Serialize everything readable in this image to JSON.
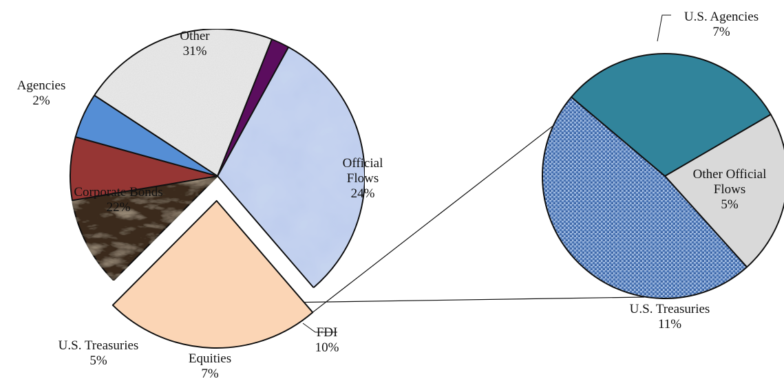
{
  "chart_data": {
    "type": "pie",
    "title": "",
    "series": [
      {
        "name": "",
        "slices": [
          {
            "label_lines": [
              "Other",
              "31%"
            ],
            "label": "Other",
            "value": 31,
            "color": "#c8d6f0",
            "texture": "paper"
          },
          {
            "label_lines": [
              "Official",
              "Flows",
              "24%"
            ],
            "label": "Official Flows",
            "value": 24,
            "color": "#fbd5b5",
            "exploded": true
          },
          {
            "label_lines": [
              "FDI",
              "10%"
            ],
            "label": "FDI",
            "value": 10,
            "color": "#3b2a1d",
            "texture": "marble"
          },
          {
            "label_lines": [
              "Equities",
              "7%"
            ],
            "label": "Equities",
            "value": 7,
            "color": "#963634"
          },
          {
            "label_lines": [
              "U.S. Treasuries",
              "5%"
            ],
            "label": "U.S. Treasuries",
            "value": 5,
            "color": "#558ed5"
          },
          {
            "label_lines": [
              "Corporate Bonds",
              "22%"
            ],
            "label": "Corporate Bonds",
            "value": 22,
            "color": "#ececec",
            "texture": "noise"
          },
          {
            "label_lines": [
              "Agencies",
              "2%"
            ],
            "label": "Agencies",
            "value": 2,
            "color": "#5b0d5e"
          }
        ]
      },
      {
        "name": "",
        "breakdown_of": "Official Flows",
        "slices": [
          {
            "label_lines": [
              "U.S. Agencies",
              "7%"
            ],
            "label": "U.S. Agencies",
            "value": 7,
            "color": "#31849b"
          },
          {
            "label_lines": [
              "Other Official",
              "Flows",
              "5%"
            ],
            "label": "Other Official Flows",
            "value": 5,
            "color": "#d9d9d9"
          },
          {
            "label_lines": [
              "U.S. Treasuries",
              "11%"
            ],
            "label": "U.S. Treasuries",
            "value": 11,
            "color": "#6e94c8",
            "texture": "weave"
          }
        ]
      }
    ],
    "legend": "none"
  }
}
